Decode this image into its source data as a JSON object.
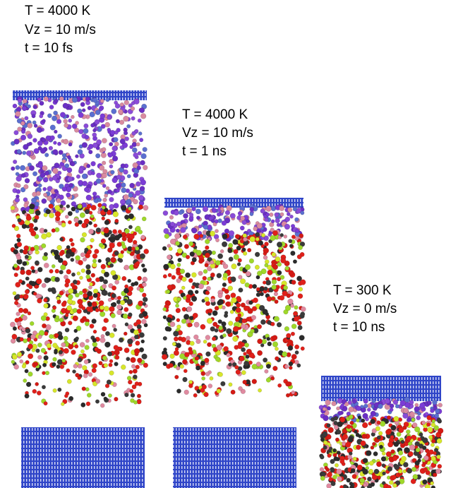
{
  "panels": [
    {
      "lines": [
        "T = 4000 K",
        "Vz = 10 m/s",
        "t = 10 fs"
      ]
    },
    {
      "lines": [
        "T = 4000 K",
        "Vz = 10 m/s",
        "t = 1 ns"
      ]
    },
    {
      "lines": [
        "T = 300 K",
        "Vz = 0 m/s",
        "t = 10 ns"
      ]
    }
  ]
}
